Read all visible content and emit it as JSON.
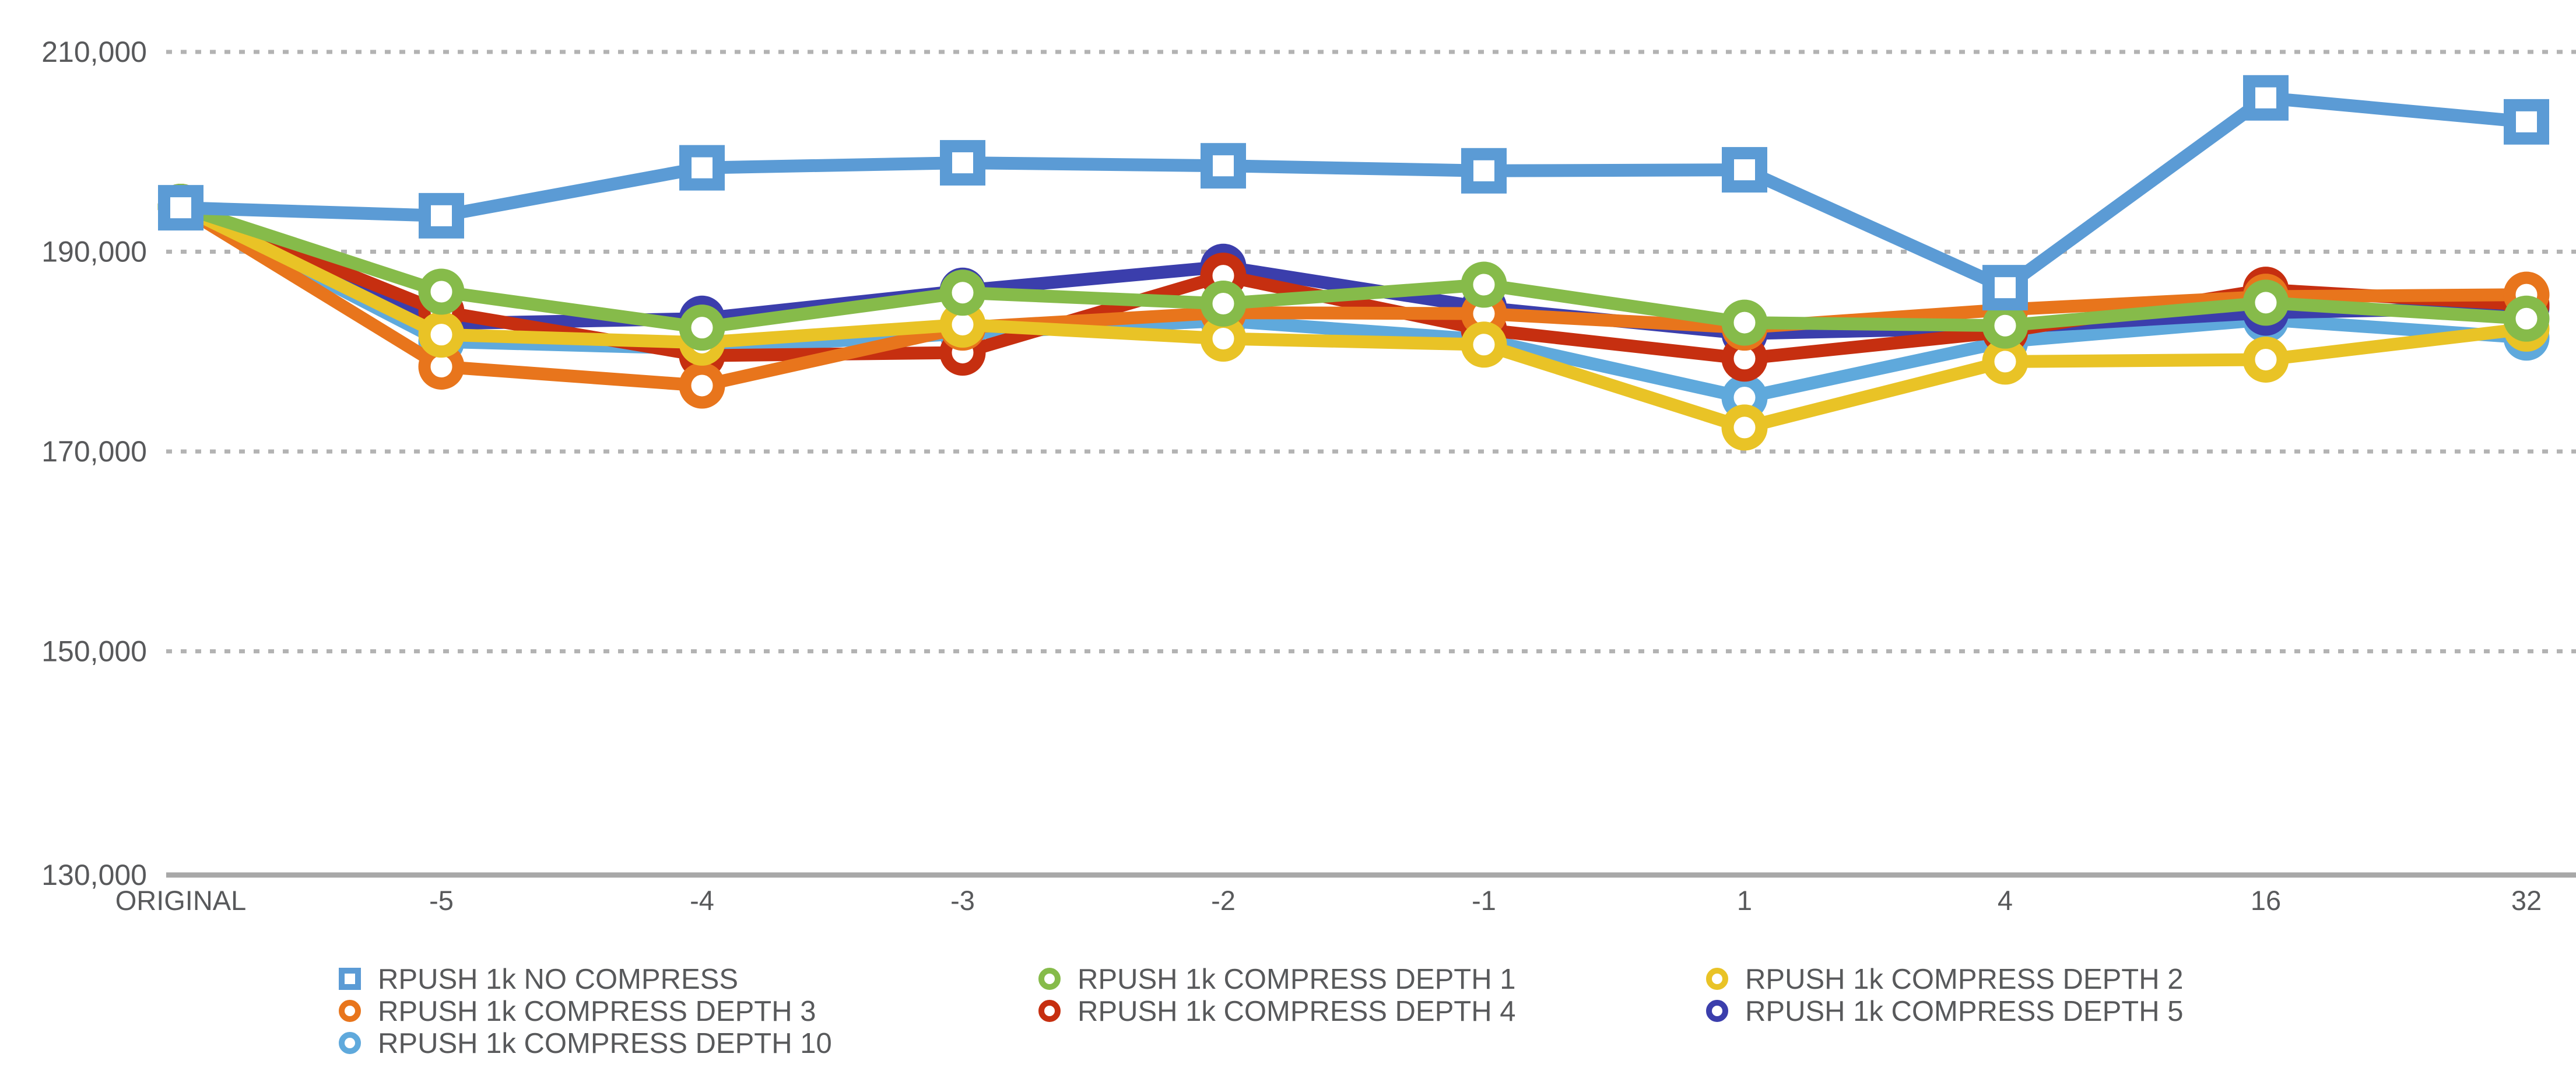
{
  "chart_data": {
    "type": "line",
    "title": "",
    "xlabel": "",
    "ylabel": "",
    "categories": [
      "ORIGINAL",
      "-5",
      "-4",
      "-3",
      "-2",
      "-1",
      "1",
      "4",
      "16",
      "32"
    ],
    "y_axis": {
      "min": 130000,
      "max": 210000,
      "tick_step": 20000,
      "gridline_ticks": [
        {
          "value": 210000,
          "label": "210,000"
        },
        {
          "value": 190000,
          "label": "190,000"
        },
        {
          "value": 170000,
          "label": "170,000"
        },
        {
          "value": 150000,
          "label": "150,000"
        }
      ],
      "baseline_tick": {
        "value": 130000,
        "label": "130,000"
      },
      "grid": "dotted"
    },
    "series": [
      {
        "name": "RPUSH 1k NO COMPRESS",
        "color": "#5b9bd5",
        "marker": "square",
        "values": [
          194400,
          193600,
          198400,
          198900,
          198600,
          198100,
          198200,
          186400,
          205400,
          203000
        ]
      },
      {
        "name": "RPUSH 1k COMPRESS DEPTH 1",
        "color": "#86bb4a",
        "marker": "circle",
        "values": [
          194500,
          186000,
          182400,
          185900,
          184800,
          186700,
          182900,
          182600,
          184900,
          183300
        ]
      },
      {
        "name": "RPUSH 1k COMPRESS DEPTH 2",
        "color": "#e9c326",
        "marker": "circle",
        "values": [
          194500,
          181700,
          180900,
          182700,
          181300,
          180700,
          172400,
          179000,
          179200,
          182300
        ]
      },
      {
        "name": "RPUSH 1k COMPRESS DEPTH 3",
        "color": "#e8751c",
        "marker": "circle",
        "values": [
          194500,
          178500,
          176600,
          182400,
          183900,
          183800,
          182400,
          184200,
          185500,
          185700
        ]
      },
      {
        "name": "RPUSH 1k COMPRESS DEPTH 4",
        "color": "#c62f10",
        "marker": "circle",
        "values": [
          194500,
          184000,
          179600,
          179900,
          187600,
          182200,
          179300,
          182000,
          186200,
          184700
        ]
      },
      {
        "name": "RPUSH 1k COMPRESS DEPTH 5",
        "color": "#3b3eac",
        "marker": "circle",
        "values": [
          194500,
          182800,
          183300,
          186100,
          188500,
          184400,
          181800,
          182400,
          183900,
          184400
        ]
      },
      {
        "name": "RPUSH 1k COMPRESS DEPTH 10",
        "color": "#5fa9dc",
        "marker": "circle",
        "values": [
          194500,
          181000,
          180300,
          181800,
          183100,
          181200,
          175400,
          181000,
          183200,
          181400
        ]
      }
    ],
    "draw_order": [
      6,
      5,
      4,
      3,
      2,
      1,
      0
    ],
    "legend": {
      "position": "bottom",
      "columns": [
        [
          0,
          3,
          6
        ],
        [
          1,
          4
        ],
        [
          2,
          5
        ]
      ]
    }
  },
  "style": {
    "text_color": "#58595b",
    "gridline_color": "#b3b3b3",
    "axis_color": "#a8a8a8",
    "background": "#ffffff"
  }
}
